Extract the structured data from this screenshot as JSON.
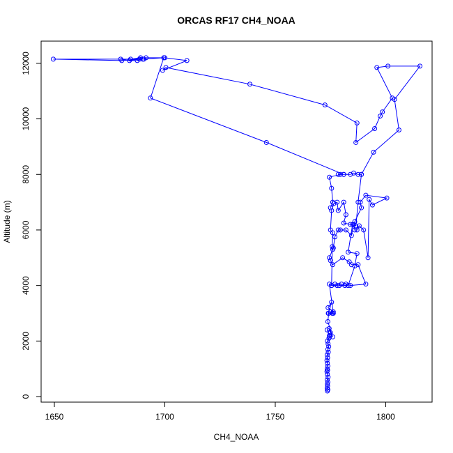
{
  "chart_data": {
    "type": "line",
    "title": "ORCAS RF17 CH4_NOAA",
    "xlabel": "CH4_NOAA",
    "ylabel": "Altitude (m)",
    "xlim": [
      1644,
      1821
    ],
    "ylim": [
      -200,
      12800
    ],
    "xticks": [
      1650,
      1700,
      1750,
      1800
    ],
    "yticks": [
      0,
      2000,
      4000,
      6000,
      8000,
      10000,
      12000
    ],
    "grid": false,
    "series_color": "#0000ff",
    "series": [
      {
        "points": [
          [
            1773.6,
            200
          ],
          [
            1773.8,
            250
          ],
          [
            1773.5,
            300
          ],
          [
            1773.7,
            380
          ],
          [
            1773.6,
            450
          ],
          [
            1773.8,
            520
          ],
          [
            1773.5,
            600
          ],
          [
            1773.9,
            700
          ],
          [
            1773.6,
            800
          ],
          [
            1773.4,
            900
          ],
          [
            1773.7,
            950
          ],
          [
            1773.5,
            1000
          ],
          [
            1773.8,
            1100
          ],
          [
            1773.6,
            1200
          ],
          [
            1773.4,
            1300
          ],
          [
            1773.7,
            1400
          ],
          [
            1773.5,
            1500
          ],
          [
            1774.0,
            1600
          ],
          [
            1773.8,
            1700
          ],
          [
            1774.2,
            1800
          ],
          [
            1773.9,
            1900
          ],
          [
            1773.6,
            2000
          ],
          [
            1774.3,
            2100
          ],
          [
            1774.6,
            2150
          ],
          [
            1773.5,
            2400
          ],
          [
            1774.5,
            2200
          ],
          [
            1775.0,
            2300
          ],
          [
            1774.4,
            2450
          ],
          [
            1776.0,
            2150
          ],
          [
            1773.8,
            2700
          ],
          [
            1774.2,
            3000
          ],
          [
            1775.0,
            3050
          ],
          [
            1775.8,
            3000
          ],
          [
            1776.3,
            3050
          ],
          [
            1773.9,
            3200
          ],
          [
            1775.5,
            3400
          ],
          [
            1774.0,
            3000
          ],
          [
            1776.3,
            3000
          ],
          [
            1774.5,
            4050
          ],
          [
            1775.5,
            4000
          ],
          [
            1778.0,
            4000
          ],
          [
            1780.0,
            4050
          ],
          [
            1782.0,
            4050
          ],
          [
            1784.0,
            4000
          ],
          [
            1791.0,
            4050
          ],
          [
            1787.5,
            4750
          ],
          [
            1784.5,
            4750
          ],
          [
            1783.5,
            4850
          ],
          [
            1780.5,
            5000
          ],
          [
            1776.0,
            4750
          ],
          [
            1775.0,
            4900
          ],
          [
            1774.5,
            5000
          ],
          [
            1776.0,
            5300
          ],
          [
            1776.3,
            5350
          ],
          [
            1777.0,
            5750
          ],
          [
            1778.5,
            6000
          ],
          [
            1779.5,
            6000
          ],
          [
            1782.0,
            6000
          ],
          [
            1784.5,
            5800
          ],
          [
            1785.5,
            6200
          ],
          [
            1786.0,
            6000
          ],
          [
            1787.0,
            6000
          ],
          [
            1788.0,
            6150
          ],
          [
            1790.0,
            6000
          ],
          [
            1792.0,
            5000
          ],
          [
            1792.5,
            7100
          ],
          [
            1794.0,
            6900
          ],
          [
            1800.5,
            7150
          ],
          [
            1791.0,
            7250
          ],
          [
            1788.5,
            7000
          ],
          [
            1789.0,
            6800
          ],
          [
            1786.0,
            6300
          ],
          [
            1785.0,
            6200
          ],
          [
            1783.0,
            5200
          ],
          [
            1787.0,
            5150
          ],
          [
            1786.0,
            4700
          ],
          [
            1783.0,
            4000
          ],
          [
            1781.5,
            4000
          ],
          [
            1779.0,
            4000
          ],
          [
            1777.0,
            4050
          ],
          [
            1775.5,
            4000
          ],
          [
            1775.8,
            5400
          ],
          [
            1776.0,
            5900
          ],
          [
            1775.0,
            6000
          ],
          [
            1775.5,
            6700
          ],
          [
            1776.5,
            6950
          ],
          [
            1778.0,
            7000
          ],
          [
            1778.5,
            6700
          ],
          [
            1781.0,
            7000
          ],
          [
            1782.0,
            6550
          ],
          [
            1781.0,
            6250
          ],
          [
            1784.0,
            6200
          ],
          [
            1786.5,
            6150
          ],
          [
            1787.5,
            7000
          ],
          [
            1789.0,
            8000
          ],
          [
            1787.5,
            8000
          ],
          [
            1785.5,
            8050
          ],
          [
            1784.0,
            8000
          ],
          [
            1781.0,
            8000
          ],
          [
            1778.5,
            8000
          ],
          [
            1779.5,
            8000
          ],
          [
            1774.5,
            7900
          ],
          [
            1775.5,
            7500
          ],
          [
            1776.0,
            7000
          ],
          [
            1775.0,
            6800
          ]
        ]
      },
      {
        "points": [
          [
            1789.0,
            8000
          ],
          [
            1794.5,
            8800
          ],
          [
            1806.0,
            9600
          ],
          [
            1804.0,
            10700
          ],
          [
            1815.5,
            11900
          ],
          [
            1801.0,
            11900
          ],
          [
            1796.0,
            11850
          ],
          [
            1803.0,
            10750
          ],
          [
            1798.5,
            10250
          ],
          [
            1797.5,
            10100
          ],
          [
            1795.0,
            9650
          ],
          [
            1786.5,
            9150
          ],
          [
            1787.0,
            9850
          ],
          [
            1772.5,
            10500
          ],
          [
            1738.5,
            11250
          ],
          [
            1700.5,
            11850
          ],
          [
            1699.0,
            11750
          ],
          [
            1710.0,
            12100
          ],
          [
            1700.0,
            12200
          ],
          [
            1691.5,
            12200
          ],
          [
            1690.0,
            12150
          ],
          [
            1687.5,
            12100
          ],
          [
            1684.0,
            12100
          ],
          [
            1680.0,
            12150
          ],
          [
            1684.5,
            12150
          ],
          [
            1689.0,
            12200
          ],
          [
            1688.5,
            12150
          ],
          [
            1690.5,
            12150
          ],
          [
            1649.5,
            12150
          ],
          [
            1680.5,
            12100
          ],
          [
            1699.5,
            12200
          ],
          [
            1693.5,
            10750
          ],
          [
            1746.0,
            9150
          ],
          [
            1781.0,
            8000
          ]
        ]
      }
    ]
  }
}
